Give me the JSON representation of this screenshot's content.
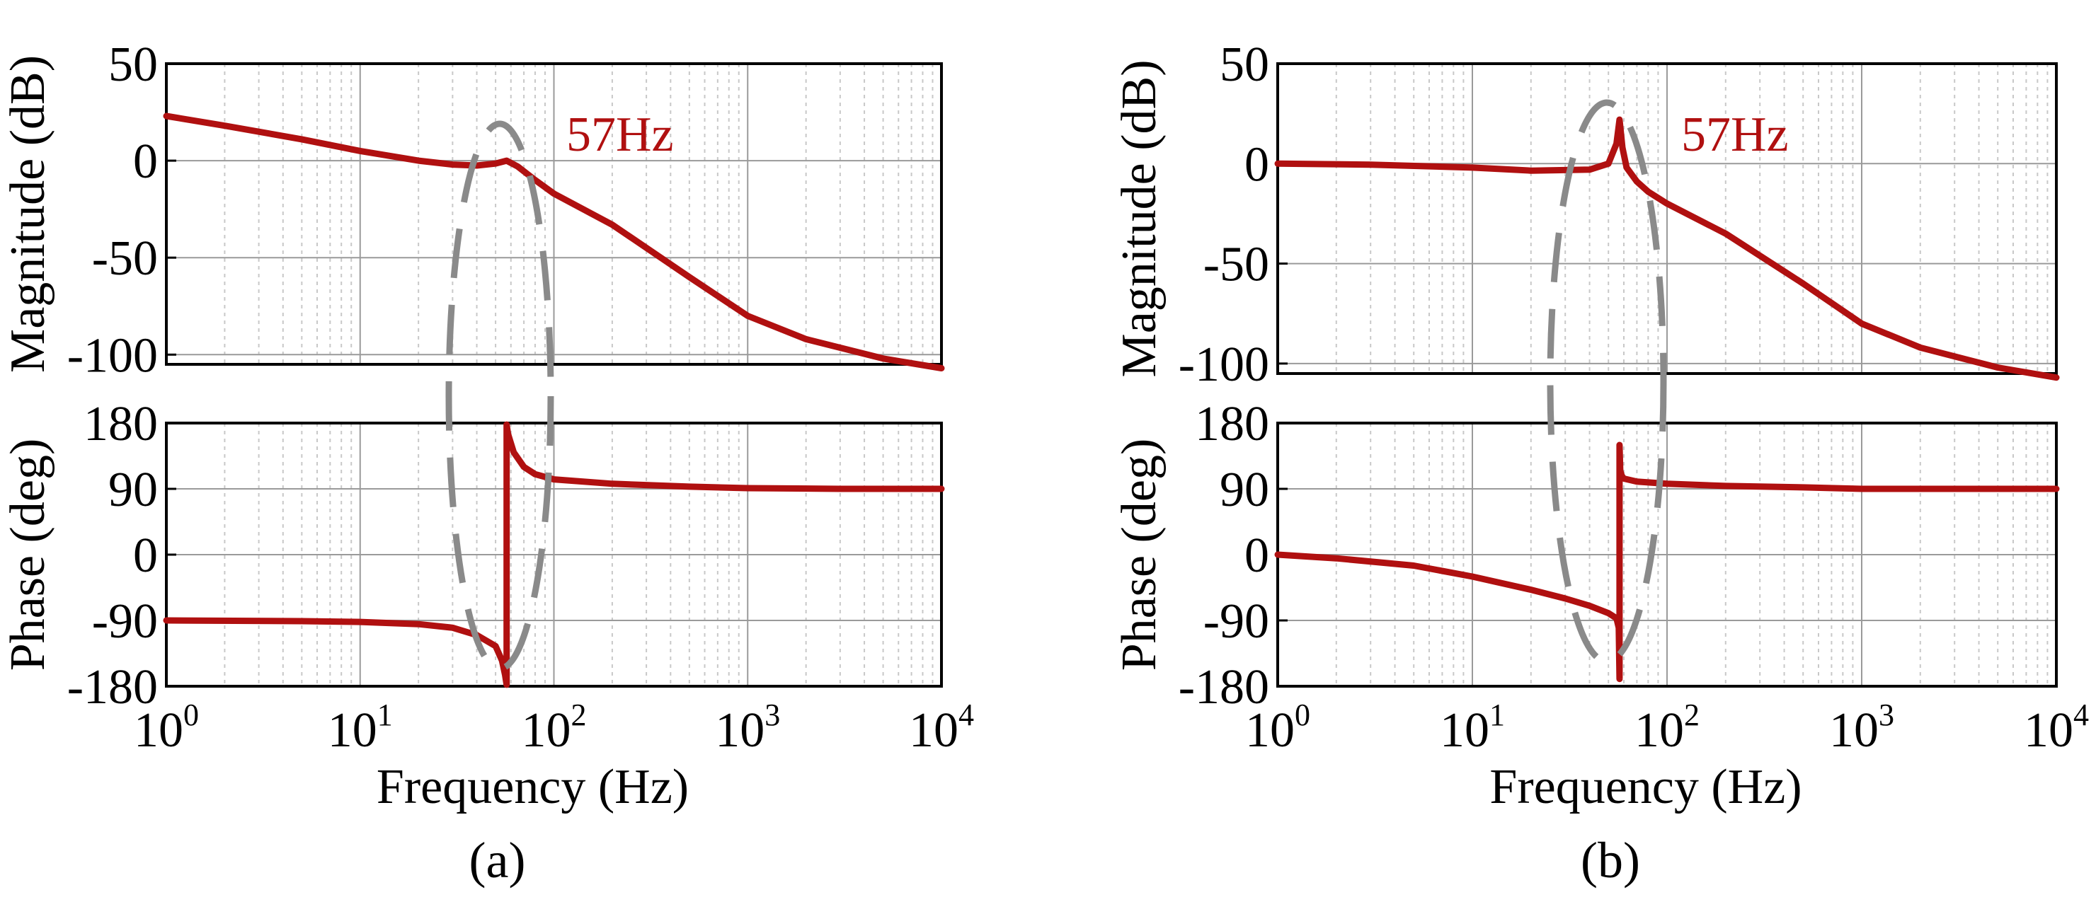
{
  "chart_data": [
    {
      "type": "line",
      "panel_label": "(a)",
      "annotation": "57Hz",
      "xlabel": "Frequency  (Hz)",
      "x_scale": "log",
      "xlim": [
        1,
        10000
      ],
      "x_ticks": [
        {
          "base": "10",
          "exp": "0"
        },
        {
          "base": "10",
          "exp": "1"
        },
        {
          "base": "10",
          "exp": "2"
        },
        {
          "base": "10",
          "exp": "3"
        },
        {
          "base": "10",
          "exp": "4"
        }
      ],
      "magnitude": {
        "ylabel": "Magnitude (dB)",
        "ylim": [
          -105,
          50
        ],
        "y_ticks": [
          "50",
          "0",
          "-50",
          "-100"
        ],
        "y_tick_values": [
          50,
          0,
          -50,
          -100
        ],
        "freq": [
          1,
          2,
          5,
          10,
          20,
          30,
          40,
          50,
          57,
          65,
          80,
          100,
          200,
          500,
          1000,
          2000,
          5000,
          10000
        ],
        "values": [
          23,
          18,
          11,
          5,
          0,
          -2,
          -2.5,
          -1.5,
          0,
          -3,
          -10,
          -17,
          -33,
          -60,
          -80,
          -92,
          -102,
          -107
        ]
      },
      "phase": {
        "ylabel": "Phase (deg)",
        "ylim": [
          -180,
          180
        ],
        "y_ticks": [
          "180",
          "90",
          "0",
          "-90",
          "-180"
        ],
        "y_tick_values": [
          180,
          90,
          0,
          -90,
          -180
        ],
        "freq": [
          1,
          5,
          10,
          20,
          30,
          40,
          50,
          54,
          56,
          57,
          57.01,
          58,
          62,
          70,
          80,
          100,
          200,
          500,
          1000,
          3000,
          10000
        ],
        "values": [
          -90,
          -91,
          -92,
          -95,
          -100,
          -110,
          -125,
          -145,
          -165,
          -178,
          178,
          165,
          140,
          120,
          110,
          103,
          97,
          93,
          91,
          90,
          90
        ]
      }
    },
    {
      "type": "line",
      "panel_label": "(b)",
      "annotation": "57Hz",
      "xlabel": "Frequency  (Hz)",
      "x_scale": "log",
      "xlim": [
        1,
        10000
      ],
      "x_ticks": [
        {
          "base": "10",
          "exp": "0"
        },
        {
          "base": "10",
          "exp": "1"
        },
        {
          "base": "10",
          "exp": "2"
        },
        {
          "base": "10",
          "exp": "3"
        },
        {
          "base": "10",
          "exp": "4"
        }
      ],
      "magnitude": {
        "ylabel": "Magnitude (dB)",
        "ylim": [
          -105,
          50
        ],
        "y_ticks": [
          "50",
          "0",
          "-50",
          "-100"
        ],
        "y_tick_values": [
          50,
          0,
          -50,
          -100
        ],
        "freq": [
          1,
          3,
          10,
          20,
          40,
          50,
          55,
          57,
          59,
          62,
          70,
          80,
          100,
          200,
          500,
          1000,
          2000,
          5000,
          10000
        ],
        "values": [
          0,
          -0.5,
          -2,
          -3.5,
          -3,
          0,
          10,
          22,
          8,
          -2,
          -9,
          -14,
          -20,
          -35,
          -60,
          -80,
          -92,
          -102,
          -107
        ]
      },
      "phase": {
        "ylabel": "Phase (deg)",
        "ylim": [
          -180,
          180
        ],
        "y_ticks": [
          "180",
          "90",
          "0",
          "-90",
          "-180"
        ],
        "y_tick_values": [
          180,
          90,
          0,
          -90,
          -180
        ],
        "freq": [
          1,
          2,
          5,
          10,
          20,
          30,
          40,
          50,
          55,
          56.5,
          57,
          57.01,
          57.5,
          58.5,
          60,
          70,
          100,
          200,
          500,
          1000,
          3000,
          10000
        ],
        "values": [
          0,
          -5,
          -15,
          -30,
          -48,
          -60,
          -70,
          -80,
          -87,
          -100,
          -170,
          150,
          115,
          108,
          104,
          100,
          97,
          94,
          92,
          90,
          90,
          90
        ]
      }
    }
  ]
}
